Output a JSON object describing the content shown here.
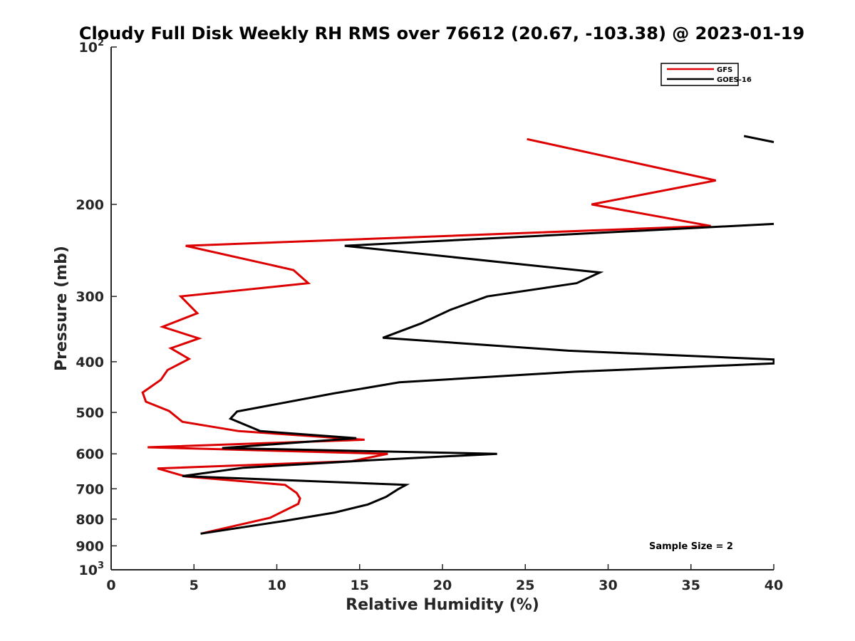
{
  "chart_data": {
    "type": "line",
    "title": "Cloudy Full Disk Weekly RH RMS over 76612 (20.67, -103.38) @ 2023-01-19",
    "xlabel": "Relative Humidity (%)",
    "ylabel": "Pressure (mb)",
    "xlim": [
      0,
      40
    ],
    "ylim": [
      100,
      1000
    ],
    "yscale": "log",
    "y_reversed": true,
    "xticks": [
      0,
      5,
      10,
      15,
      20,
      25,
      30,
      35,
      40
    ],
    "xtick_labels": [
      "0",
      "5",
      "10",
      "15",
      "20",
      "25",
      "30",
      "35",
      "40"
    ],
    "yticks": [
      {
        "value": 100,
        "base": "10",
        "exp": "2"
      },
      {
        "value": 200,
        "label": "200"
      },
      {
        "value": 300,
        "label": "300"
      },
      {
        "value": 400,
        "label": "400"
      },
      {
        "value": 500,
        "label": "500"
      },
      {
        "value": 600,
        "label": "600"
      },
      {
        "value": 700,
        "label": "700"
      },
      {
        "value": 800,
        "label": "800"
      },
      {
        "value": 900,
        "label": "900"
      },
      {
        "value": 1000,
        "base": "10",
        "exp": "3"
      }
    ],
    "legend_position": "top-right",
    "annotation": "Sample Size = 2",
    "series": [
      {
        "name": "GFS",
        "color": "#dd0000",
        "points": [
          [
            25.1,
            150
          ],
          [
            36.5,
            180
          ],
          [
            29.0,
            200
          ],
          [
            36.2,
            220
          ],
          [
            4.5,
            240
          ],
          [
            11.0,
            267
          ],
          [
            11.9,
            283
          ],
          [
            4.2,
            300
          ],
          [
            5.2,
            323
          ],
          [
            3.1,
            343
          ],
          [
            5.3,
            361
          ],
          [
            3.6,
            377
          ],
          [
            4.7,
            395
          ],
          [
            3.4,
            415
          ],
          [
            3.0,
            433
          ],
          [
            1.9,
            458
          ],
          [
            2.1,
            477
          ],
          [
            3.5,
            497
          ],
          [
            4.3,
            521
          ],
          [
            7.7,
            543
          ],
          [
            15.3,
            564
          ],
          [
            2.2,
            583
          ],
          [
            16.7,
            600
          ],
          [
            14.5,
            620
          ],
          [
            2.8,
            640
          ],
          [
            4.5,
            663
          ],
          [
            10.5,
            688
          ],
          [
            11.2,
            713
          ],
          [
            11.4,
            730
          ],
          [
            11.3,
            748
          ],
          [
            9.6,
            795
          ],
          [
            5.4,
            853
          ]
        ]
      },
      {
        "name": "GOES-16",
        "color": "#000000",
        "points": [
          [
            38.2,
            148
          ],
          [
            40.0,
            152
          ],
          [
            null,
            null
          ],
          [
            40.0,
            218
          ],
          [
            14.1,
            240
          ],
          [
            29.5,
            270
          ],
          [
            28.1,
            283
          ],
          [
            22.7,
            300
          ],
          [
            20.5,
            318
          ],
          [
            18.7,
            338
          ],
          [
            16.4,
            360
          ],
          [
            27.6,
            381
          ],
          [
            40.0,
            396
          ],
          [
            40.0,
            403
          ],
          [
            28.0,
            418
          ],
          [
            17.4,
            438
          ],
          [
            13.4,
            460
          ],
          [
            7.6,
            498
          ],
          [
            7.2,
            514
          ],
          [
            9.0,
            543
          ],
          [
            14.8,
            560
          ],
          [
            6.7,
            585
          ],
          [
            23.3,
            600
          ],
          [
            15.7,
            617
          ],
          [
            8.0,
            638
          ],
          [
            4.3,
            662
          ],
          [
            17.8,
            688
          ],
          [
            17.3,
            702
          ],
          [
            16.6,
            725
          ],
          [
            15.5,
            750
          ],
          [
            13.5,
            777
          ],
          [
            10.4,
            807
          ],
          [
            5.4,
            853
          ]
        ]
      }
    ]
  }
}
